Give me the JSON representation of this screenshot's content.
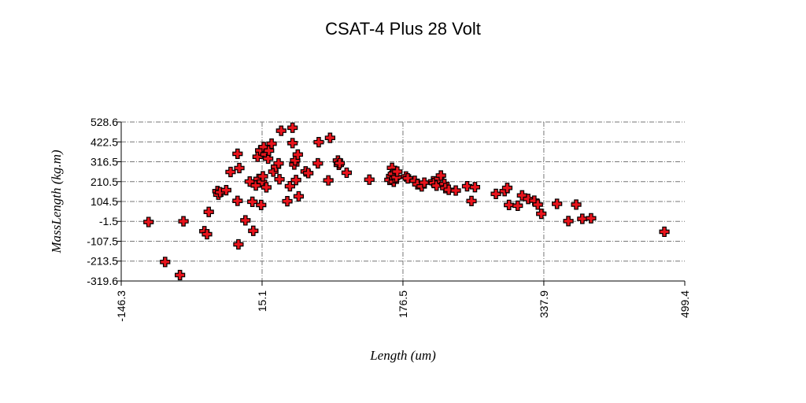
{
  "chart_data": {
    "type": "scatter",
    "title": "CSAT-4 Plus 28 Volt",
    "xlabel": "Length (um)",
    "ylabel": "MassLength (kg.m)",
    "xlim": [
      -146.3,
      499.4
    ],
    "ylim": [
      -319.6,
      528.6
    ],
    "xticks": [
      "-146.3",
      "15.1",
      "176.5",
      "337.9",
      "499.4"
    ],
    "yticks": [
      "528.6",
      "422.5",
      "316.5",
      "210.5",
      "104.5",
      "-1.5",
      "-107.5",
      "-213.5",
      "-319.6"
    ],
    "grid": true,
    "marker_color": "#e8141c",
    "points": [
      [
        -115,
        -5
      ],
      [
        -96,
        -218
      ],
      [
        -79,
        -288
      ],
      [
        -75,
        -1
      ],
      [
        -51,
        -54
      ],
      [
        -48,
        -70
      ],
      [
        -46,
        49
      ],
      [
        -36,
        160
      ],
      [
        -35,
        141
      ],
      [
        -33,
        154
      ],
      [
        -26,
        165
      ],
      [
        -21,
        262
      ],
      [
        -13,
        359
      ],
      [
        -13,
        108
      ],
      [
        -11,
        283
      ],
      [
        -12,
        -124
      ],
      [
        -4,
        4
      ],
      [
        1,
        211
      ],
      [
        4,
        103
      ],
      [
        5,
        -52
      ],
      [
        8,
        190
      ],
      [
        10,
        343
      ],
      [
        11,
        225
      ],
      [
        13,
        377
      ],
      [
        14,
        86
      ],
      [
        15,
        210
      ],
      [
        16,
        239
      ],
      [
        17,
        395
      ],
      [
        19,
        356
      ],
      [
        20,
        180
      ],
      [
        22,
        333
      ],
      [
        23,
        376
      ],
      [
        26,
        413
      ],
      [
        28,
        264
      ],
      [
        31,
        290
      ],
      [
        34,
        308
      ],
      [
        35,
        223
      ],
      [
        37,
        482
      ],
      [
        44,
        106
      ],
      [
        47,
        186
      ],
      [
        50,
        416
      ],
      [
        50,
        498
      ],
      [
        52,
        302
      ],
      [
        53,
        324
      ],
      [
        54,
        219
      ],
      [
        56,
        355
      ],
      [
        57,
        132
      ],
      [
        65,
        265
      ],
      [
        68,
        256
      ],
      [
        79,
        308
      ],
      [
        80,
        421
      ],
      [
        91,
        217
      ],
      [
        93,
        444
      ],
      [
        102,
        323
      ],
      [
        103,
        300
      ],
      [
        104,
        309
      ],
      [
        112,
        258
      ],
      [
        138,
        221
      ],
      [
        161,
        220
      ],
      [
        163,
        240
      ],
      [
        164,
        284
      ],
      [
        165,
        252
      ],
      [
        166,
        210
      ],
      [
        167,
        229
      ],
      [
        169,
        234
      ],
      [
        170,
        264
      ],
      [
        180,
        238
      ],
      [
        182,
        228
      ],
      [
        190,
        215
      ],
      [
        193,
        196
      ],
      [
        198,
        185
      ],
      [
        201,
        205
      ],
      [
        211,
        212
      ],
      [
        212,
        203
      ],
      [
        215,
        189
      ],
      [
        218,
        227
      ],
      [
        220,
        243
      ],
      [
        224,
        198
      ],
      [
        225,
        176
      ],
      [
        229,
        167
      ],
      [
        237,
        163
      ],
      [
        250,
        186
      ],
      [
        255,
        107
      ],
      [
        259,
        181
      ],
      [
        283,
        145
      ],
      [
        293,
        160
      ],
      [
        296,
        177
      ],
      [
        298,
        86
      ],
      [
        308,
        82
      ],
      [
        313,
        137
      ],
      [
        320,
        118
      ],
      [
        327,
        109
      ],
      [
        331,
        88
      ],
      [
        335,
        39
      ],
      [
        353,
        92
      ],
      [
        366,
        0
      ],
      [
        375,
        88
      ],
      [
        382,
        12
      ],
      [
        392,
        15
      ],
      [
        476,
        -57
      ]
    ]
  }
}
